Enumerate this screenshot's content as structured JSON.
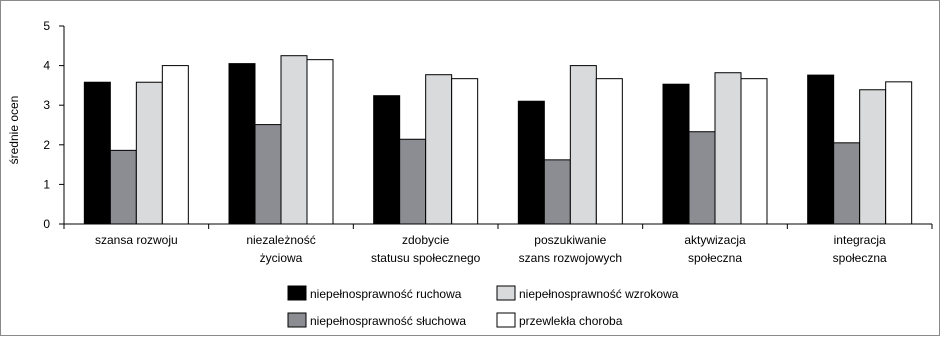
{
  "chart_data": {
    "type": "bar",
    "ylabel": "średnie ocen",
    "ylim": [
      0,
      5
    ],
    "yticks": [
      "0",
      "1",
      "2",
      "3",
      "4",
      "5"
    ],
    "grid": false,
    "legend_position": "bottom",
    "categories": [
      [
        "szansa rozwoju"
      ],
      [
        "niezależność",
        "życiowa"
      ],
      [
        "zdobycie",
        "statusu społecznego"
      ],
      [
        "poszukiwanie",
        "szans rozwojowych"
      ],
      [
        "aktywizacja",
        "społeczna"
      ],
      [
        "integracja",
        "społeczna"
      ]
    ],
    "series": [
      {
        "name": "niepełnosprawność ruchowa",
        "color": "#000000",
        "values": [
          3.58,
          4.05,
          3.24,
          3.1,
          3.53,
          3.76
        ]
      },
      {
        "name": "niepełnosprawność słuchowa",
        "color": "#8c8d92",
        "values": [
          1.86,
          2.51,
          2.14,
          1.62,
          2.33,
          2.05
        ]
      },
      {
        "name": "niepełnosprawność wzrokowa",
        "color": "#d9dadb",
        "values": [
          3.58,
          4.25,
          3.77,
          4.0,
          3.82,
          3.39
        ]
      },
      {
        "name": "przewlekła choroba",
        "color": "#ffffff",
        "values": [
          4.0,
          4.15,
          3.67,
          3.67,
          3.67,
          3.59
        ]
      }
    ]
  }
}
